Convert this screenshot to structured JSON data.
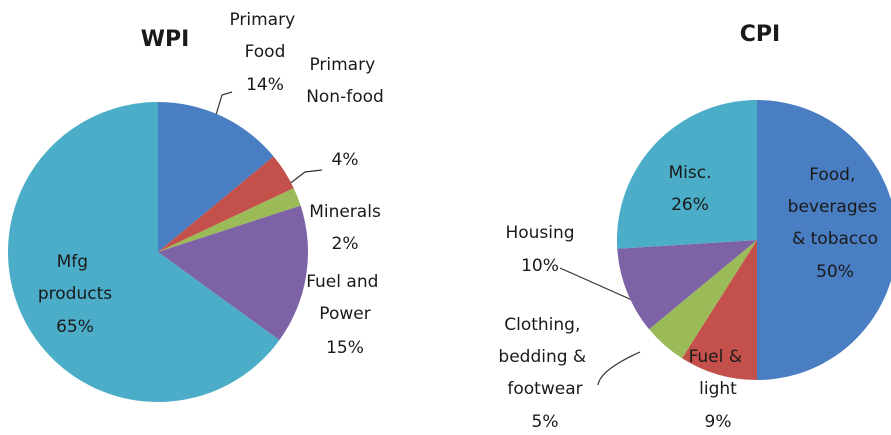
{
  "chart_data": [
    {
      "type": "pie",
      "title": "WPI",
      "categories": [
        "Primary Food",
        "Primary Non-food",
        "Minerals",
        "Fuel and Power",
        "Mfg products"
      ],
      "values": [
        14,
        4,
        2,
        15,
        65
      ],
      "value_labels": [
        "14%",
        "4%",
        "2%",
        "15%",
        "65%"
      ],
      "colors": [
        "#4a7ec2",
        "#c4504c",
        "#9bbb59",
        "#7e62a6",
        "#4badc7"
      ]
    },
    {
      "type": "pie",
      "title": "CPI",
      "categories": [
        "Food, beverages & tobacco",
        "Fuel & light",
        "Clothing, bedding & footwear",
        "Housing",
        "Misc."
      ],
      "values": [
        50,
        9,
        5,
        10,
        26
      ],
      "value_labels": [
        "50%",
        "9%",
        "5%",
        "10%",
        "26%"
      ],
      "colors": [
        "#4a7ec2",
        "#c4504c",
        "#9bbb59",
        "#7e62a6",
        "#4badc7"
      ]
    }
  ]
}
